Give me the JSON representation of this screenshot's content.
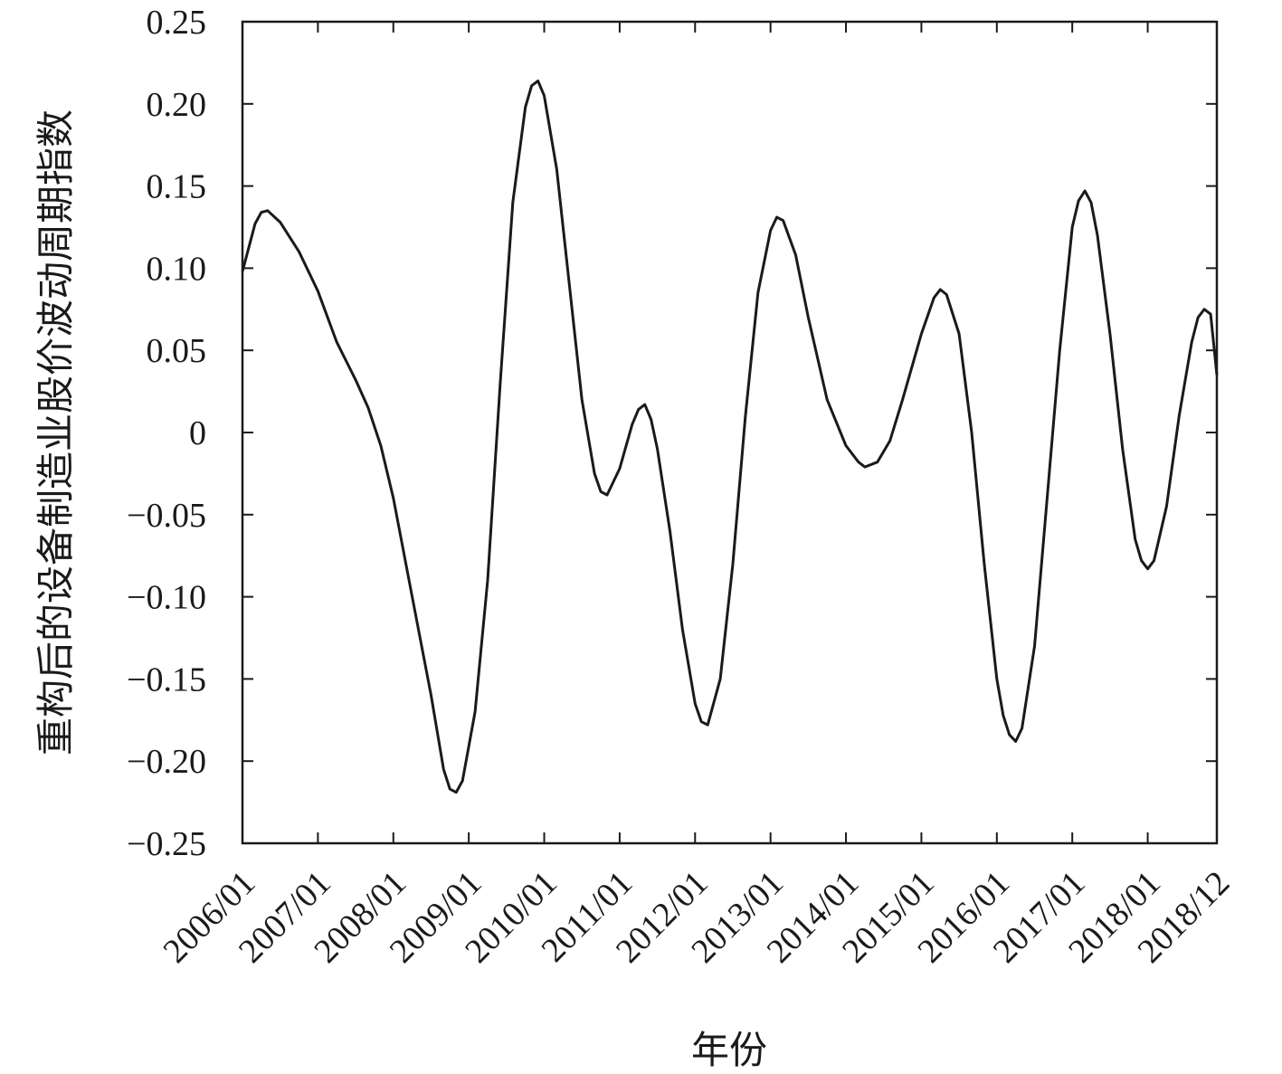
{
  "chart_data": {
    "type": "line",
    "title": "",
    "xlabel": "年份",
    "ylabel": "重构后的设备制造业股价波动周期指数",
    "ylim": [
      -0.25,
      0.25
    ],
    "yticks": [
      {
        "value": 0.25,
        "label": "0.25"
      },
      {
        "value": 0.2,
        "label": "0.20"
      },
      {
        "value": 0.15,
        "label": "0.15"
      },
      {
        "value": 0.1,
        "label": "0.10"
      },
      {
        "value": 0.05,
        "label": "0.05"
      },
      {
        "value": 0,
        "label": "0"
      },
      {
        "value": -0.05,
        "label": "−0.05"
      },
      {
        "value": -0.1,
        "label": "−0.10"
      },
      {
        "value": -0.15,
        "label": "−0.15"
      },
      {
        "value": -0.2,
        "label": "−0.20"
      },
      {
        "value": -0.25,
        "label": "−0.25"
      }
    ],
    "xticks": [
      {
        "value": "2006/01",
        "label": "2006/01"
      },
      {
        "value": "2007/01",
        "label": "2007/01"
      },
      {
        "value": "2008/01",
        "label": "2008/01"
      },
      {
        "value": "2009/01",
        "label": "2009/01"
      },
      {
        "value": "2010/01",
        "label": "2010/01"
      },
      {
        "value": "2011/01",
        "label": "2011/01"
      },
      {
        "value": "2012/01",
        "label": "2012/01"
      },
      {
        "value": "2013/01",
        "label": "2013/01"
      },
      {
        "value": "2014/01",
        "label": "2014/01"
      },
      {
        "value": "2015/01",
        "label": "2015/01"
      },
      {
        "value": "2016/01",
        "label": "2016/01"
      },
      {
        "value": "2017/01",
        "label": "2017/01"
      },
      {
        "value": "2018/01",
        "label": "2018/01"
      },
      {
        "value": "2018/12",
        "label": "2018/12"
      }
    ],
    "xrange": [
      "2006/01",
      "2018/12"
    ],
    "grid": false,
    "series": [
      {
        "points": [
          [
            "2006/01",
            0.098
          ],
          [
            "2006/03",
            0.127
          ],
          [
            "2006/04",
            0.134
          ],
          [
            "2006/05",
            0.135
          ],
          [
            "2006/07",
            0.128
          ],
          [
            "2006/10",
            0.11
          ],
          [
            "2007/01",
            0.086
          ],
          [
            "2007/04",
            0.055
          ],
          [
            "2007/07",
            0.032
          ],
          [
            "2007/09",
            0.015
          ],
          [
            "2007/11",
            -0.008
          ],
          [
            "2008/01",
            -0.04
          ],
          [
            "2008/04",
            -0.1
          ],
          [
            "2008/07",
            -0.16
          ],
          [
            "2008/09",
            -0.205
          ],
          [
            "2008/10",
            -0.217
          ],
          [
            "2008/11",
            -0.219
          ],
          [
            "2008/12",
            -0.212
          ],
          [
            "2009/02",
            -0.17
          ],
          [
            "2009/04",
            -0.09
          ],
          [
            "2009/06",
            0.03
          ],
          [
            "2009/08",
            0.14
          ],
          [
            "2009/10",
            0.198
          ],
          [
            "2009/11",
            0.211
          ],
          [
            "2009/12",
            0.214
          ],
          [
            "2010/01",
            0.205
          ],
          [
            "2010/03",
            0.16
          ],
          [
            "2010/05",
            0.09
          ],
          [
            "2010/07",
            0.02
          ],
          [
            "2010/09",
            -0.025
          ],
          [
            "2010/10",
            -0.036
          ],
          [
            "2010/11",
            -0.038
          ],
          [
            "2011/01",
            -0.022
          ],
          [
            "2011/03",
            0.005
          ],
          [
            "2011/04",
            0.014
          ],
          [
            "2011/05",
            0.017
          ],
          [
            "2011/06",
            0.008
          ],
          [
            "2011/07",
            -0.01
          ],
          [
            "2011/09",
            -0.06
          ],
          [
            "2011/11",
            -0.12
          ],
          [
            "2012/01",
            -0.165
          ],
          [
            "2012/02",
            -0.176
          ],
          [
            "2012/03",
            -0.178
          ],
          [
            "2012/05",
            -0.15
          ],
          [
            "2012/07",
            -0.08
          ],
          [
            "2012/09",
            0.01
          ],
          [
            "2012/11",
            0.085
          ],
          [
            "2013/01",
            0.123
          ],
          [
            "2013/02",
            0.131
          ],
          [
            "2013/03",
            0.129
          ],
          [
            "2013/05",
            0.108
          ],
          [
            "2013/07",
            0.07
          ],
          [
            "2013/10",
            0.02
          ],
          [
            "2014/01",
            -0.008
          ],
          [
            "2014/03",
            -0.018
          ],
          [
            "2014/04",
            -0.021
          ],
          [
            "2014/06",
            -0.018
          ],
          [
            "2014/08",
            -0.005
          ],
          [
            "2014/10",
            0.02
          ],
          [
            "2015/01",
            0.06
          ],
          [
            "2015/03",
            0.082
          ],
          [
            "2015/04",
            0.087
          ],
          [
            "2015/05",
            0.084
          ],
          [
            "2015/07",
            0.06
          ],
          [
            "2015/09",
            0.0
          ],
          [
            "2015/11",
            -0.08
          ],
          [
            "2016/01",
            -0.15
          ],
          [
            "2016/02",
            -0.172
          ],
          [
            "2016/03",
            -0.184
          ],
          [
            "2016/04",
            -0.188
          ],
          [
            "2016/05",
            -0.18
          ],
          [
            "2016/07",
            -0.13
          ],
          [
            "2016/09",
            -0.04
          ],
          [
            "2016/11",
            0.05
          ],
          [
            "2017/01",
            0.125
          ],
          [
            "2017/02",
            0.141
          ],
          [
            "2017/03",
            0.147
          ],
          [
            "2017/04",
            0.14
          ],
          [
            "2017/05",
            0.12
          ],
          [
            "2017/07",
            0.06
          ],
          [
            "2017/09",
            -0.01
          ],
          [
            "2017/11",
            -0.065
          ],
          [
            "2017/12",
            -0.078
          ],
          [
            "2018/01",
            -0.083
          ],
          [
            "2018/02",
            -0.078
          ],
          [
            "2018/04",
            -0.045
          ],
          [
            "2018/06",
            0.01
          ],
          [
            "2018/08",
            0.055
          ],
          [
            "2018/09",
            0.07
          ],
          [
            "2018/10",
            0.075
          ],
          [
            "2018/11",
            0.072
          ],
          [
            "2018/12",
            0.035
          ]
        ]
      }
    ]
  }
}
